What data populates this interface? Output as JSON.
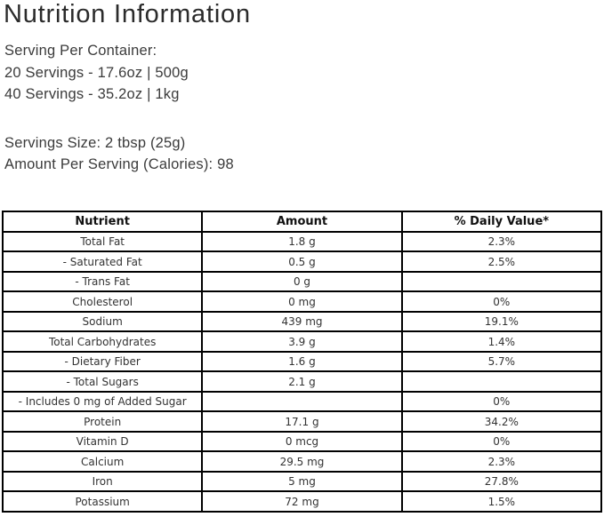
{
  "title": "Nutrition Information",
  "serving_info": {
    "per_container_label": "Serving Per Container:",
    "option1": "20 Servings - 17.6oz | 500g",
    "option2": "40 Servings - 35.2oz | 1kg",
    "size": "Servings Size: 2 tbsp (25g)",
    "calories": "Amount Per Serving (Calories): 98"
  },
  "table": {
    "headers": [
      "Nutrient",
      "Amount",
      "% Daily Value*"
    ],
    "rows": [
      [
        "Total Fat",
        "1.8 g",
        "2.3%"
      ],
      [
        "- Saturated Fat",
        "0.5 g",
        "2.5%"
      ],
      [
        "- Trans Fat",
        "0 g",
        ""
      ],
      [
        "Cholesterol",
        "0 mg",
        "0%"
      ],
      [
        "Sodium",
        "439 mg",
        "19.1%"
      ],
      [
        "Total Carbohydrates",
        "3.9 g",
        "1.4%"
      ],
      [
        "- Dietary Fiber",
        "1.6 g",
        "5.7%"
      ],
      [
        "- Total Sugars",
        "2.1 g",
        ""
      ],
      [
        "- Includes 0 mg of Added Sugar",
        "",
        "0%"
      ],
      [
        "Protein",
        "17.1 g",
        "34.2%"
      ],
      [
        "Vitamin D",
        "0 mcg",
        "0%"
      ],
      [
        "Calcium",
        "29.5 mg",
        "2.3%"
      ],
      [
        "Iron",
        "5 mg",
        "27.8%"
      ],
      [
        "Potassium",
        "72 mg",
        "1.5%"
      ]
    ]
  },
  "colors": {
    "title_text": "#2b2b2b",
    "body_text": "#3b3b3b",
    "table_text": "#333333",
    "table_border": "#000000",
    "background": "#ffffff"
  }
}
